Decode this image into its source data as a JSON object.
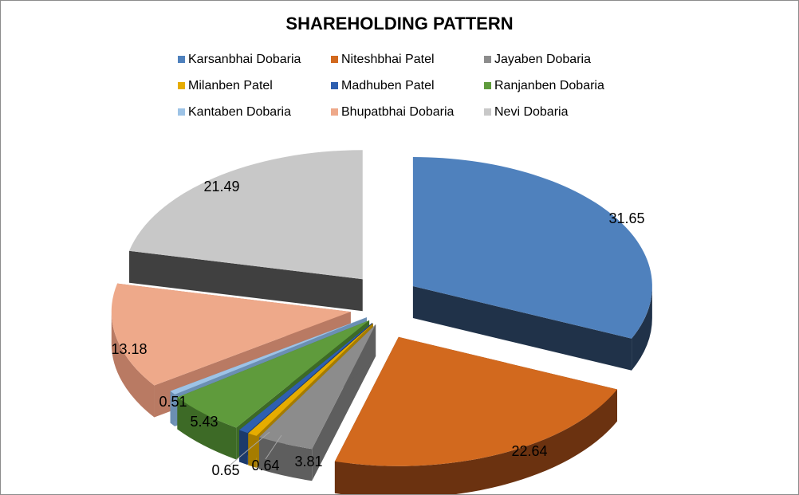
{
  "chart_data": {
    "type": "pie",
    "title": "SHAREHOLDING PATTERN",
    "legend_position": "top",
    "three_d": true,
    "exploded": true,
    "slices": [
      {
        "name": "Karsanbhai Dobaria",
        "value": 31.65,
        "label": "31.65",
        "color": "#4f81bd",
        "side_color": "#203249"
      },
      {
        "name": "Niteshbhai Patel",
        "value": 22.64,
        "label": "22.64",
        "color": "#d2691e",
        "side_color": "#6b3210"
      },
      {
        "name": "Jayaben Dobaria",
        "value": 3.81,
        "label": "3.81",
        "color": "#8c8c8c",
        "side_color": "#5e5e5e"
      },
      {
        "name": "Milanben Patel",
        "value": 0.64,
        "label": "0.64",
        "color": "#e6ac00",
        "side_color": "#a67c00"
      },
      {
        "name": "Madhuben Patel",
        "value": 0.65,
        "label": "0.65",
        "color": "#2e5fb0",
        "side_color": "#1c3a6b"
      },
      {
        "name": "Ranjanben Dobaria",
        "value": 5.43,
        "label": "5.43",
        "color": "#5f9b3c",
        "side_color": "#3d6a26"
      },
      {
        "name": "Kantaben Dobaria",
        "value": 0.51,
        "label": "0.51",
        "color": "#9dc3e6",
        "side_color": "#6b8fb3"
      },
      {
        "name": "Bhupatbhai Dobaria",
        "value": 13.18,
        "label": "13.18",
        "color": "#eea98a",
        "side_color": "#b97a63"
      },
      {
        "name": "Nevi Dobaria",
        "value": 21.49,
        "label": "21.49",
        "color": "#c8c8c8",
        "side_color": "#404040"
      }
    ]
  }
}
